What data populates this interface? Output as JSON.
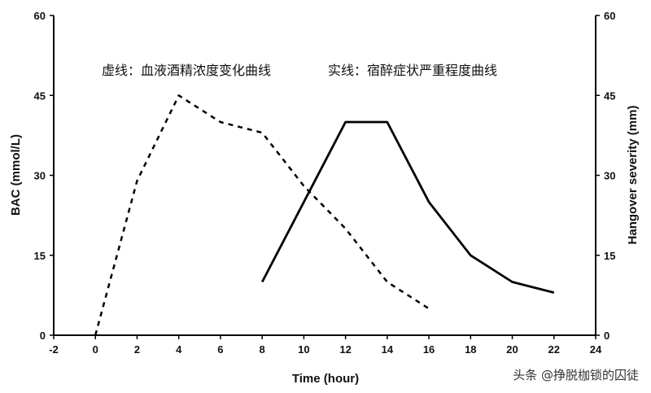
{
  "chart_data": {
    "type": "line",
    "xlabel": "Time (hour)",
    "ylabel": "BAC (mmol/L)",
    "y2label": "Hangover severity (mm)",
    "xlim": [
      -2,
      24
    ],
    "ylim": [
      0,
      60
    ],
    "y2lim": [
      0,
      60
    ],
    "xticks": [
      "-2",
      "0",
      "2",
      "4",
      "6",
      "8",
      "10",
      "12",
      "14",
      "16",
      "18",
      "20",
      "22",
      "24"
    ],
    "yticks": [
      "0",
      "15",
      "30",
      "45",
      "60"
    ],
    "y2ticks": [
      "0",
      "15",
      "30",
      "45",
      "60"
    ],
    "grid": false,
    "annotations": {
      "dashed_note": "虚线：血液酒精浓度变化曲线",
      "solid_note": "实线：宿醉症状严重程度曲线"
    },
    "series": [
      {
        "style": "dashed",
        "axis": "left",
        "x": [
          0,
          2,
          4,
          6,
          8,
          10,
          12,
          14,
          16
        ],
        "y": [
          0,
          29,
          45,
          40,
          38,
          28,
          20,
          10,
          5
        ]
      },
      {
        "style": "solid",
        "axis": "right",
        "x": [
          8,
          12,
          14,
          16,
          18,
          20,
          22
        ],
        "y": [
          10,
          40,
          40,
          25,
          15,
          10,
          8
        ]
      }
    ]
  },
  "watermark": "头条 @挣脱枷锁的囚徒",
  "colors": {
    "line": "#000000",
    "axis": "#000000"
  }
}
